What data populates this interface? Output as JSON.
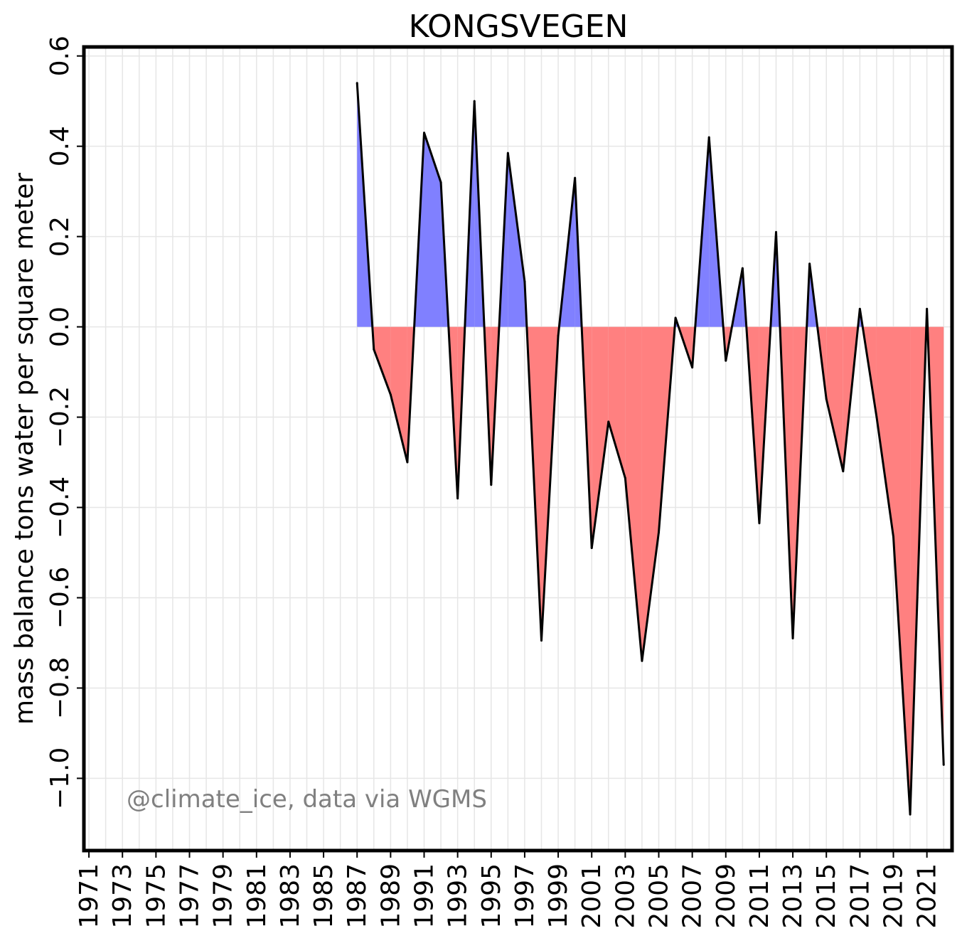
{
  "chart_data": {
    "type": "area",
    "title": "KONGSVEGEN",
    "xlabel": "",
    "ylabel": "mass balance tons water per square meter",
    "annotation": "@climate_ice, data via WGMS",
    "xlim": [
      1970.7,
      2022.5
    ],
    "ylim": [
      -1.16,
      0.62
    ],
    "x_ticks": [
      1971,
      1973,
      1975,
      1977,
      1979,
      1981,
      1983,
      1985,
      1987,
      1989,
      1991,
      1993,
      1995,
      1997,
      1999,
      2001,
      2003,
      2005,
      2007,
      2009,
      2011,
      2013,
      2015,
      2017,
      2019,
      2021
    ],
    "y_ticks": [
      0.6,
      0.4,
      0.2,
      0.0,
      -0.2,
      -0.4,
      -0.6,
      -0.8,
      -1.0
    ],
    "y_tick_labels": [
      "0.6",
      "0.4",
      "0.2",
      "0.0",
      "−0.2",
      "−0.4",
      "−0.6",
      "−0.8",
      "−1.0"
    ],
    "grid": true,
    "colors": {
      "positive": "#8080ff",
      "negative": "#ff8080",
      "line": "#000000",
      "grid": "#e6e6e6"
    },
    "x": [
      1987,
      1988,
      1989,
      1990,
      1991,
      1992,
      1993,
      1994,
      1995,
      1996,
      1997,
      1998,
      1999,
      2000,
      2001,
      2002,
      2003,
      2004,
      2005,
      2006,
      2007,
      2008,
      2009,
      2010,
      2011,
      2012,
      2013,
      2014,
      2015,
      2016,
      2017,
      2018,
      2019,
      2020,
      2021,
      2022
    ],
    "values": [
      0.54,
      -0.05,
      -0.15,
      -0.3,
      0.43,
      0.32,
      -0.38,
      0.5,
      -0.35,
      0.385,
      0.1,
      -0.695,
      -0.02,
      0.33,
      -0.49,
      -0.21,
      -0.335,
      -0.74,
      -0.455,
      0.02,
      -0.09,
      0.42,
      -0.075,
      0.13,
      -0.435,
      0.21,
      -0.69,
      0.14,
      -0.16,
      -0.32,
      0.04,
      -0.2,
      -0.465,
      -1.08,
      0.04,
      -0.97
    ]
  }
}
